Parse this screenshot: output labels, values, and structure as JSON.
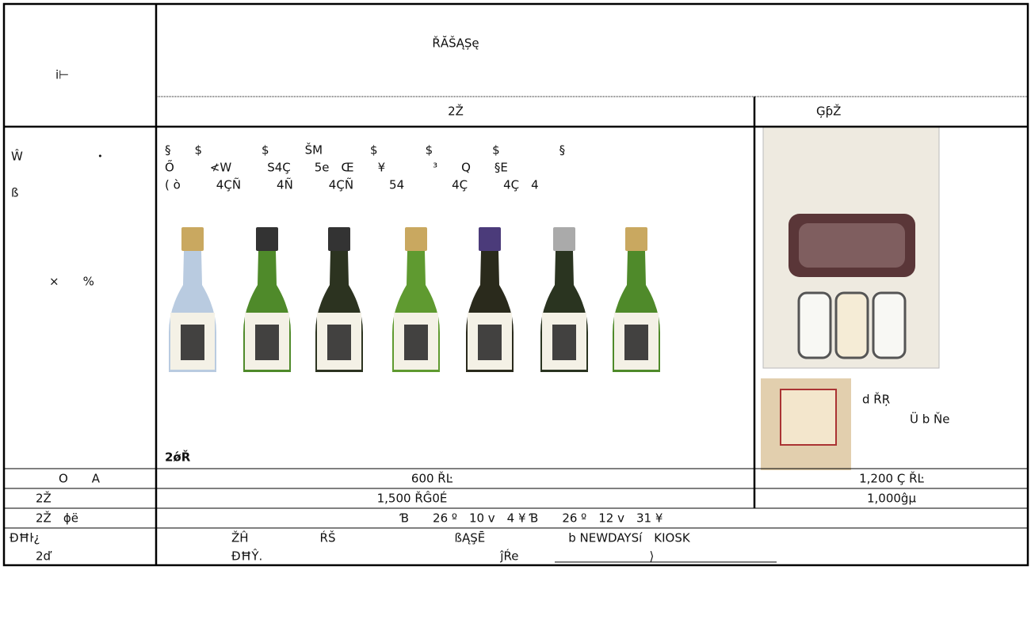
{
  "header": {
    "label": "i⊢",
    "group": "ŘĂŠĄȘę",
    "sub": [
      "2Ž",
      "ĢƥŽ"
    ]
  },
  "image_row": {
    "label_lines": [
      "Ŵ　　　　　　・",
      "ß",
      "×　　%"
    ],
    "bottle_text": [
      "§　　$　　　　　$　　　ŠM　　　　$　　　　$　　　　　$　　　　　§",
      "Ő　　　≮W　　　S4Ç　　5e　Œ　　¥　　　　³　　Q　　§E",
      "( ò　　　4ÇÑ　　　4Ñ　　　4ÇÑ　　　54　　　　4Ç　　　4Ç　4"
    ],
    "caption": "2ǿŘ",
    "box_notes": [
      "d ŘŖ",
      "Ü b Ňe"
    ]
  },
  "rows": [
    {
      "label": "O　　A",
      "cells": [
        "600 ŘĿ",
        "1,200 Ç ŘĿ"
      ]
    },
    {
      "label": "2Ž",
      "cells": [
        "1,500 ŘĜ0É",
        "1,000ĝµ"
      ]
    },
    {
      "label": "2Ž　ɸë",
      "cells": [
        "Ɓ　　26 º　10 v　4 ¥ Ɓ　　26 º　12 v　31 ¥"
      ]
    },
    {
      "label": "ÐĦŀ¿",
      "label2": "2ď",
      "cells": [
        "ŽĤ　　　　　　ŔŠ　　　　　　　　　　ßĄŞĒ　　　　　　　b NEWDAYSí　KIOSK",
        "ĐĦŶ.　　　　　　　　　　　　　　　　　　　　ĵŔe　　　　　　　　　　　⟩"
      ]
    }
  ]
}
